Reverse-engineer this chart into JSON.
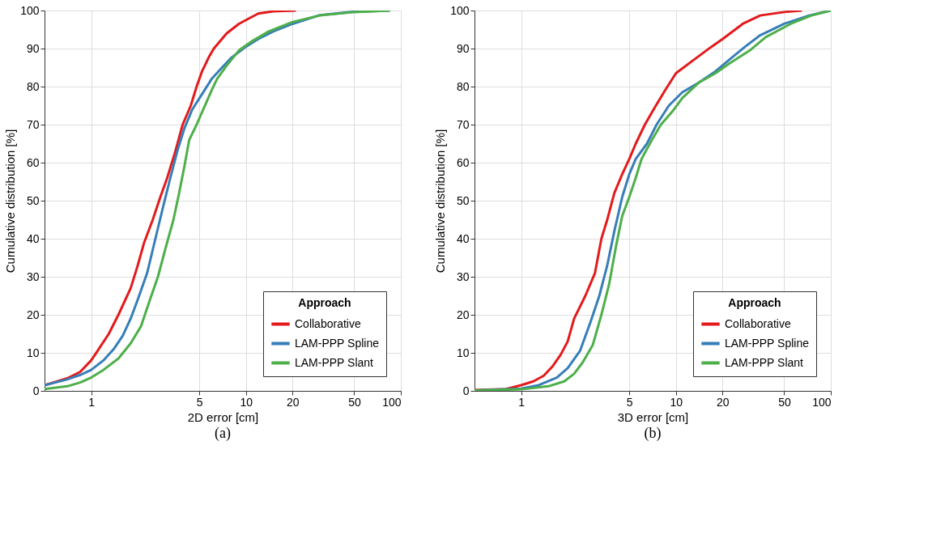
{
  "chart_data": [
    {
      "type": "line",
      "xlabel": "2D error [cm]",
      "ylabel": "Cumulative distribution [%]",
      "legend_title": "Approach",
      "legend": "bottom right",
      "grid": true,
      "log": "x",
      "xlim": [
        0.5,
        100
      ],
      "xticks": [
        1,
        5,
        10,
        20,
        50,
        100
      ],
      "ylim": [
        0,
        100
      ],
      "yticks": [
        0,
        10,
        20,
        30,
        40,
        50,
        60,
        70,
        80,
        90,
        100
      ],
      "annotations": [
        "(a)"
      ],
      "series": [
        {
          "name": "Collaborative",
          "color": "#e31a1c",
          "x": [
            0.5,
            0.7,
            0.85,
            1.0,
            1.1,
            1.3,
            1.5,
            1.8,
            2.0,
            2.2,
            2.5,
            2.8,
            3.1,
            3.5,
            3.9,
            4.4,
            4.8,
            5.2,
            5.8,
            6.2,
            7.5,
            9,
            10,
            12,
            15,
            21
          ],
          "values": [
            1.5,
            3.3,
            5,
            8,
            10.5,
            15,
            20,
            27,
            33,
            39,
            45,
            51,
            56,
            63,
            70,
            75,
            80,
            84,
            88,
            90,
            94,
            96.5,
            97.5,
            99.2,
            99.8,
            100
          ]
        },
        {
          "name": "LAM-PPP Spline",
          "color": "#377eb8",
          "x": [
            0.5,
            0.7,
            0.85,
            1.0,
            1.2,
            1.4,
            1.6,
            1.8,
            2.0,
            2.3,
            2.6,
            2.9,
            3.2,
            3.6,
            4.0,
            4.5,
            5.2,
            6.0,
            7,
            8,
            10,
            12,
            15,
            20,
            30,
            50,
            85
          ],
          "values": [
            1.5,
            3,
            4.2,
            5.5,
            8,
            11,
            14.5,
            19,
            24,
            31,
            40,
            48,
            55,
            63,
            69,
            74,
            78,
            82,
            85,
            87.5,
            90.5,
            92.5,
            94.5,
            96.5,
            98.8,
            99.7,
            100
          ]
        },
        {
          "name": "LAM-PPP Slant",
          "color": "#4daf4a",
          "x": [
            0.5,
            0.7,
            0.85,
            1.0,
            1.2,
            1.5,
            1.8,
            2.1,
            2.4,
            2.7,
            3.0,
            3.4,
            3.7,
            4.0,
            4.3,
            4.8,
            5.3,
            6,
            6.5,
            7.5,
            9,
            11,
            14,
            20,
            30,
            50,
            85
          ],
          "values": [
            0.5,
            1.2,
            2.2,
            3.5,
            5.5,
            8.5,
            12.5,
            17,
            24,
            30,
            37,
            45,
            52,
            59,
            66,
            70,
            74,
            79,
            82,
            85.5,
            89.5,
            92,
            94.5,
            97,
            98.7,
            99.6,
            100
          ]
        }
      ]
    },
    {
      "type": "line",
      "xlabel": "3D error [cm]",
      "ylabel": "Cumulative distribution [%]",
      "legend_title": "Approach",
      "legend": "bottom right",
      "grid": true,
      "log": "x",
      "xlim": [
        0.5,
        100
      ],
      "xticks": [
        1,
        5,
        10,
        20,
        50,
        100
      ],
      "ylim": [
        0,
        100
      ],
      "yticks": [
        0,
        10,
        20,
        30,
        40,
        50,
        60,
        70,
        80,
        90,
        100
      ],
      "annotations": [
        "(b)"
      ],
      "series": [
        {
          "name": "Collaborative",
          "color": "#e31a1c",
          "x": [
            0.5,
            0.8,
            1.0,
            1.2,
            1.4,
            1.6,
            1.8,
            2.0,
            2.2,
            2.6,
            3.0,
            3.3,
            3.6,
            4.0,
            4.5,
            5.0,
            5.5,
            6.3,
            7.3,
            8.5,
            10,
            13,
            17,
            20,
            27,
            35,
            50,
            65
          ],
          "values": [
            0.2,
            0.5,
            1.5,
            2.5,
            4,
            6.5,
            9.5,
            13,
            19,
            25,
            31,
            40,
            45,
            52,
            57,
            61,
            65,
            70,
            74.5,
            79,
            83.5,
            87,
            90.5,
            92.5,
            96.5,
            98.7,
            99.6,
            100
          ]
        },
        {
          "name": "LAM-PPP Spline",
          "color": "#377eb8",
          "x": [
            0.5,
            1.0,
            1.3,
            1.7,
            2.0,
            2.4,
            2.8,
            3.2,
            3.6,
            4.0,
            4.5,
            5.0,
            5.5,
            6.5,
            7.5,
            9,
            11,
            14,
            18,
            22,
            28,
            35,
            50,
            70,
            100
          ],
          "values": [
            0.1,
            0.6,
            1.5,
            3.5,
            6,
            10.5,
            18,
            25,
            33,
            42,
            51,
            57,
            61,
            65,
            70,
            75,
            78.5,
            81,
            84,
            87,
            90.5,
            93.5,
            96.5,
            98.5,
            100
          ]
        },
        {
          "name": "LAM-PPP Slant",
          "color": "#4daf4a",
          "x": [
            0.5,
            1.0,
            1.5,
            1.9,
            2.2,
            2.5,
            2.9,
            3.3,
            3.7,
            4.1,
            4.5,
            5.0,
            5.5,
            6.0,
            7,
            8,
            9.5,
            11,
            14,
            18,
            22,
            30,
            38,
            55,
            75,
            100
          ],
          "values": [
            0.1,
            0.4,
            1.2,
            2.5,
            4.5,
            7.5,
            12,
            20,
            28,
            38,
            46,
            51,
            56,
            61,
            66,
            70,
            73.5,
            77,
            81,
            83.5,
            86,
            89.5,
            93,
            96.5,
            98.7,
            100
          ]
        }
      ]
    }
  ]
}
